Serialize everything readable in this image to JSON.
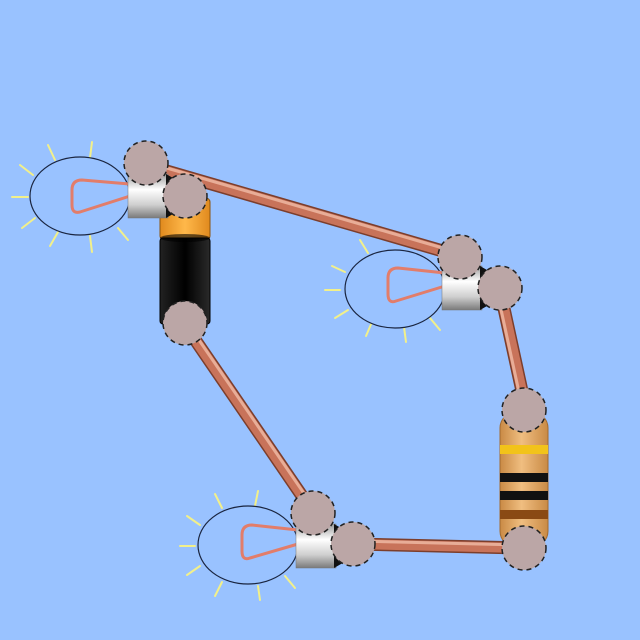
{
  "scene": {
    "background": "#99c2ff",
    "components": [
      {
        "type": "bulb",
        "name": "bulb-top-left",
        "lit": true
      },
      {
        "type": "bulb",
        "name": "bulb-middle-right",
        "lit": true
      },
      {
        "type": "bulb",
        "name": "bulb-bottom",
        "lit": true
      },
      {
        "type": "battery",
        "name": "battery"
      },
      {
        "type": "resistor",
        "name": "resistor",
        "bands": [
          "yellow",
          "black",
          "black",
          "brown"
        ]
      }
    ],
    "wires": [
      {
        "from": "bulb-top-left",
        "to": "bulb-middle-right"
      },
      {
        "from": "bulb-middle-right",
        "to": "resistor"
      },
      {
        "from": "resistor",
        "to": "bulb-bottom"
      },
      {
        "from": "bulb-bottom",
        "to": "battery"
      }
    ],
    "colors": {
      "wire": "#c8735a",
      "wire_highlight": "#e2a08a",
      "glow": "#f2f08a",
      "filament": "#e27d6a",
      "battery_top": "#f1a331",
      "battery_body": "#111111",
      "resistor_body": "#e0a15c",
      "band_yellow": "#f2c31a",
      "band_black": "#111111",
      "band_brown": "#8a4a14",
      "junction_cap": "#bba6a6"
    }
  }
}
